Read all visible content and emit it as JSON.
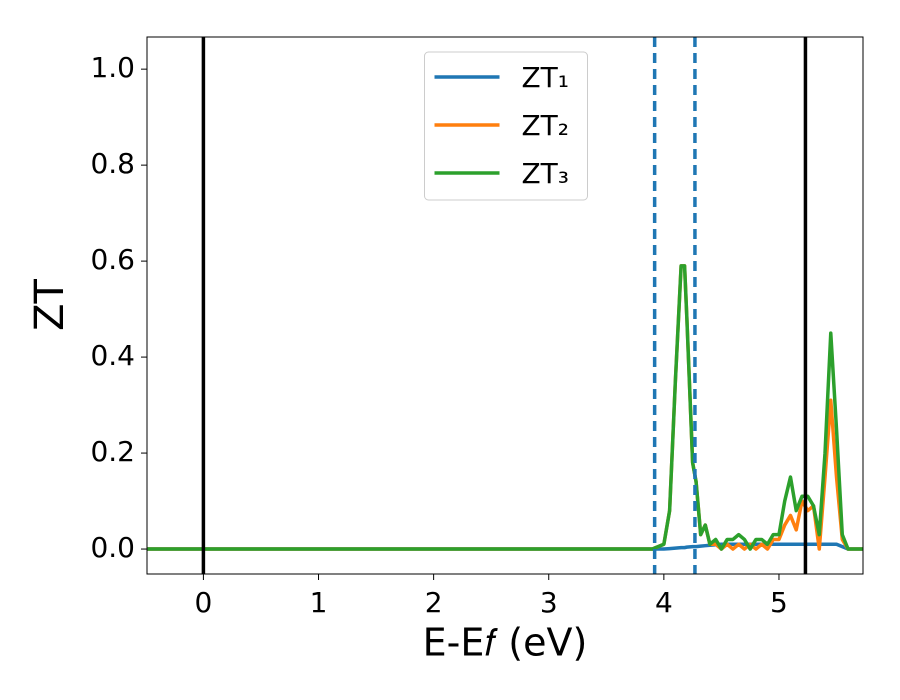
{
  "chart_data": {
    "type": "line",
    "xlabel": "E-E𝑓 (eV)",
    "ylabel": "ZT",
    "x": [
      -0.49,
      0,
      1,
      2,
      3,
      3.8,
      3.9,
      4.0,
      4.05,
      4.1,
      4.15,
      4.18,
      4.2,
      4.25,
      4.28,
      4.32,
      4.36,
      4.4,
      4.45,
      4.5,
      4.55,
      4.6,
      4.65,
      4.7,
      4.75,
      4.8,
      4.85,
      4.9,
      4.95,
      5.0,
      5.05,
      5.1,
      5.15,
      5.2,
      5.25,
      5.3,
      5.35,
      5.4,
      5.45,
      5.5,
      5.55,
      5.6,
      5.73
    ],
    "series": [
      {
        "name": "ZT₁",
        "color": "#1f77b4",
        "values": [
          0,
          0,
          0,
          0,
          0,
          0,
          0,
          0,
          0.001,
          0.002,
          0.003,
          0.003,
          0.004,
          0.005,
          0.005,
          0.006,
          0.007,
          0.008,
          0.009,
          0.01,
          0.01,
          0.01,
          0.01,
          0.01,
          0.01,
          0.01,
          0.01,
          0.01,
          0.01,
          0.01,
          0.01,
          0.01,
          0.01,
          0.01,
          0.01,
          0.01,
          0.01,
          0.01,
          0.01,
          0.01,
          0.005,
          0,
          0
        ]
      },
      {
        "name": "ZT₂",
        "color": "#ff7f0e",
        "values": [
          0,
          0,
          0,
          0,
          0,
          0,
          0,
          0.01,
          0.08,
          0.35,
          0.59,
          0.59,
          0.48,
          0.18,
          0.14,
          0.03,
          0.05,
          0.01,
          0.01,
          0,
          0.01,
          0,
          0.01,
          0,
          0.01,
          0,
          0.01,
          0,
          0.02,
          0.02,
          0.05,
          0.07,
          0.04,
          0.1,
          0.08,
          0.09,
          0,
          0.15,
          0.31,
          0.15,
          0.02,
          0,
          0
        ]
      },
      {
        "name": "ZT₃",
        "color": "#2ca02c",
        "values": [
          0,
          0,
          0,
          0,
          0,
          0,
          0,
          0.01,
          0.08,
          0.35,
          0.59,
          0.59,
          0.48,
          0.18,
          0.14,
          0.03,
          0.05,
          0.01,
          0.02,
          0,
          0.02,
          0.02,
          0.03,
          0.02,
          0,
          0.02,
          0.02,
          0.01,
          0.03,
          0.03,
          0.1,
          0.15,
          0.08,
          0.11,
          0.11,
          0.09,
          0.03,
          0.2,
          0.45,
          0.25,
          0.03,
          0,
          0
        ]
      }
    ],
    "vlines": [
      {
        "x": 0,
        "color": "#000000",
        "dashed": false
      },
      {
        "x": 5.23,
        "color": "#000000",
        "dashed": false
      },
      {
        "x": 3.92,
        "color": "#1f77b4",
        "dashed": true
      },
      {
        "x": 4.27,
        "color": "#1f77b4",
        "dashed": true
      }
    ],
    "xlim": [
      -0.49,
      5.73
    ],
    "xticks": [
      0,
      1,
      2,
      3,
      4,
      5
    ],
    "ylim": [
      -0.052,
      1.067
    ],
    "yticks": [
      {
        "value": 0,
        "label": "0.0"
      },
      {
        "value": 0.2,
        "label": "0.2"
      },
      {
        "value": 0.4,
        "label": "0.4"
      },
      {
        "value": 0.6,
        "label": "0.6"
      },
      {
        "value": 0.8,
        "label": "0.8"
      },
      {
        "value": 1,
        "label": "1.0"
      }
    ],
    "legend": "upper center",
    "grid": false
  }
}
